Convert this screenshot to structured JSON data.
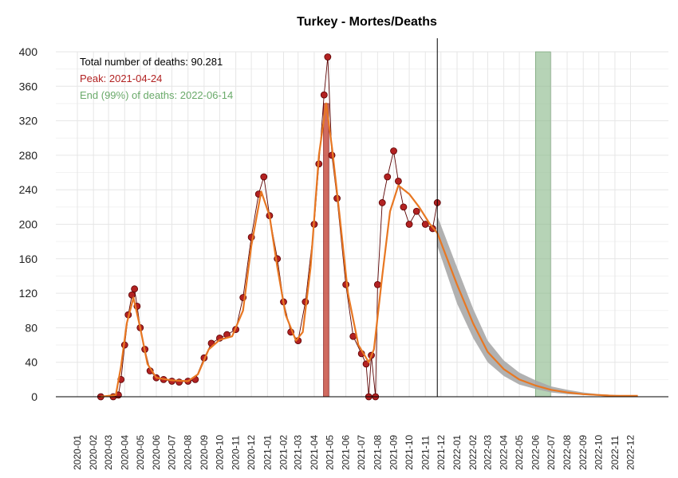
{
  "chart_data": {
    "type": "line",
    "title": "Turkey - Mortes/Deaths",
    "xlabel": "",
    "ylabel": "",
    "xlim": [
      "2020-01-01",
      "2022-12-31"
    ],
    "ylim": [
      0,
      400
    ],
    "yticks": [
      0,
      40,
      80,
      120,
      160,
      200,
      240,
      280,
      320,
      360,
      400
    ],
    "xticks": [
      "2020-01",
      "2020-02",
      "2020-03",
      "2020-04",
      "2020-05",
      "2020-06",
      "2020-07",
      "2020-08",
      "2020-09",
      "2020-10",
      "2020-11",
      "2020-12",
      "2021-01",
      "2021-02",
      "2021-03",
      "2021-04",
      "2021-05",
      "2021-06",
      "2021-07",
      "2021-08",
      "2021-09",
      "2021-10",
      "2021-11",
      "2021-12",
      "2022-01",
      "2022-02",
      "2022-03",
      "2022-04",
      "2022-05",
      "2022-06",
      "2022-07",
      "2022-08",
      "2022-09",
      "2022-10",
      "2022-11",
      "2022-12"
    ],
    "grid": true,
    "annotations": {
      "total": "Total number of deaths: 90.281",
      "peak": "Peak: 2021-04-24",
      "end": "End (99%) of deaths: 2022-06-14"
    },
    "colors": {
      "points_fill": "#b22222",
      "points_stroke": "#5a0000",
      "fit_line": "#e87722",
      "band": "#a9a9a9",
      "peak_bar": "#c0392b",
      "end_bar": "#8fbc8f",
      "annotation_total": "#000000",
      "annotation_peak": "#b22222",
      "annotation_end": "#6aaa6a"
    },
    "today": "2021-11-24",
    "peak_bar": {
      "start": "2021-04-19",
      "end": "2021-04-29",
      "height": 340
    },
    "end_bar": {
      "start": "2022-06-01",
      "end": "2022-06-30",
      "height": 400
    },
    "observed": [
      {
        "x": "2020-02-15",
        "y": 0
      },
      {
        "x": "2020-03-10",
        "y": 0
      },
      {
        "x": "2020-03-20",
        "y": 2
      },
      {
        "x": "2020-03-25",
        "y": 20
      },
      {
        "x": "2020-04-01",
        "y": 60
      },
      {
        "x": "2020-04-08",
        "y": 95
      },
      {
        "x": "2020-04-15",
        "y": 118
      },
      {
        "x": "2020-04-20",
        "y": 125
      },
      {
        "x": "2020-04-25",
        "y": 105
      },
      {
        "x": "2020-05-01",
        "y": 80
      },
      {
        "x": "2020-05-10",
        "y": 55
      },
      {
        "x": "2020-05-20",
        "y": 30
      },
      {
        "x": "2020-06-01",
        "y": 22
      },
      {
        "x": "2020-06-15",
        "y": 20
      },
      {
        "x": "2020-07-01",
        "y": 18
      },
      {
        "x": "2020-07-15",
        "y": 17
      },
      {
        "x": "2020-08-01",
        "y": 18
      },
      {
        "x": "2020-08-15",
        "y": 20
      },
      {
        "x": "2020-09-01",
        "y": 45
      },
      {
        "x": "2020-09-15",
        "y": 62
      },
      {
        "x": "2020-10-01",
        "y": 68
      },
      {
        "x": "2020-10-15",
        "y": 72
      },
      {
        "x": "2020-11-01",
        "y": 78
      },
      {
        "x": "2020-11-15",
        "y": 115
      },
      {
        "x": "2020-12-01",
        "y": 185
      },
      {
        "x": "2020-12-15",
        "y": 235
      },
      {
        "x": "2020-12-25",
        "y": 255
      },
      {
        "x": "2021-01-05",
        "y": 210
      },
      {
        "x": "2021-01-20",
        "y": 160
      },
      {
        "x": "2021-02-01",
        "y": 110
      },
      {
        "x": "2021-02-15",
        "y": 75
      },
      {
        "x": "2021-03-01",
        "y": 65
      },
      {
        "x": "2021-03-15",
        "y": 110
      },
      {
        "x": "2021-04-01",
        "y": 200
      },
      {
        "x": "2021-04-10",
        "y": 270
      },
      {
        "x": "2021-04-20",
        "y": 350
      },
      {
        "x": "2021-04-27",
        "y": 394
      },
      {
        "x": "2021-05-05",
        "y": 280
      },
      {
        "x": "2021-05-15",
        "y": 230
      },
      {
        "x": "2021-06-01",
        "y": 130
      },
      {
        "x": "2021-06-15",
        "y": 70
      },
      {
        "x": "2021-07-01",
        "y": 50
      },
      {
        "x": "2021-07-10",
        "y": 38
      },
      {
        "x": "2021-07-15",
        "y": 0
      },
      {
        "x": "2021-07-20",
        "y": 48
      },
      {
        "x": "2021-07-28",
        "y": 0
      },
      {
        "x": "2021-08-01",
        "y": 130
      },
      {
        "x": "2021-08-10",
        "y": 225
      },
      {
        "x": "2021-08-20",
        "y": 255
      },
      {
        "x": "2021-09-01",
        "y": 285
      },
      {
        "x": "2021-09-10",
        "y": 250
      },
      {
        "x": "2021-09-20",
        "y": 220
      },
      {
        "x": "2021-10-01",
        "y": 200
      },
      {
        "x": "2021-10-15",
        "y": 215
      },
      {
        "x": "2021-11-01",
        "y": 200
      },
      {
        "x": "2021-11-15",
        "y": 195
      },
      {
        "x": "2021-11-24",
        "y": 225
      }
    ],
    "fit": [
      {
        "x": "2020-02-15",
        "y": 0
      },
      {
        "x": "2020-03-15",
        "y": 2
      },
      {
        "x": "2020-03-25",
        "y": 35
      },
      {
        "x": "2020-04-05",
        "y": 85
      },
      {
        "x": "2020-04-18",
        "y": 115
      },
      {
        "x": "2020-05-01",
        "y": 80
      },
      {
        "x": "2020-05-15",
        "y": 38
      },
      {
        "x": "2020-06-01",
        "y": 22
      },
      {
        "x": "2020-07-01",
        "y": 19
      },
      {
        "x": "2020-08-01",
        "y": 18
      },
      {
        "x": "2020-08-20",
        "y": 26
      },
      {
        "x": "2020-09-10",
        "y": 55
      },
      {
        "x": "2020-10-01",
        "y": 66
      },
      {
        "x": "2020-10-25",
        "y": 70
      },
      {
        "x": "2020-11-15",
        "y": 100
      },
      {
        "x": "2020-12-01",
        "y": 175
      },
      {
        "x": "2020-12-20",
        "y": 238
      },
      {
        "x": "2021-01-05",
        "y": 210
      },
      {
        "x": "2021-01-20",
        "y": 150
      },
      {
        "x": "2021-02-05",
        "y": 95
      },
      {
        "x": "2021-02-25",
        "y": 65
      },
      {
        "x": "2021-03-10",
        "y": 75
      },
      {
        "x": "2021-03-25",
        "y": 150
      },
      {
        "x": "2021-04-10",
        "y": 280
      },
      {
        "x": "2021-04-24",
        "y": 340
      },
      {
        "x": "2021-05-05",
        "y": 290
      },
      {
        "x": "2021-05-20",
        "y": 210
      },
      {
        "x": "2021-06-05",
        "y": 120
      },
      {
        "x": "2021-06-25",
        "y": 60
      },
      {
        "x": "2021-07-15",
        "y": 40
      },
      {
        "x": "2021-07-25",
        "y": 55
      },
      {
        "x": "2021-08-10",
        "y": 140
      },
      {
        "x": "2021-08-25",
        "y": 215
      },
      {
        "x": "2021-09-10",
        "y": 245
      },
      {
        "x": "2021-10-01",
        "y": 235
      },
      {
        "x": "2021-10-20",
        "y": 220
      },
      {
        "x": "2021-11-10",
        "y": 200
      },
      {
        "x": "2021-11-24",
        "y": 190
      },
      {
        "x": "2022-01-01",
        "y": 130
      },
      {
        "x": "2022-02-01",
        "y": 85
      },
      {
        "x": "2022-03-01",
        "y": 52
      },
      {
        "x": "2022-04-01",
        "y": 32
      },
      {
        "x": "2022-05-01",
        "y": 20
      },
      {
        "x": "2022-06-01",
        "y": 13
      },
      {
        "x": "2022-07-01",
        "y": 8
      },
      {
        "x": "2022-08-01",
        "y": 5
      },
      {
        "x": "2022-09-01",
        "y": 3
      },
      {
        "x": "2022-10-01",
        "y": 2
      },
      {
        "x": "2022-11-01",
        "y": 1
      },
      {
        "x": "2022-12-15",
        "y": 1
      }
    ],
    "band": [
      {
        "x": "2021-11-24",
        "lo": 175,
        "hi": 210
      },
      {
        "x": "2022-01-01",
        "lo": 108,
        "hi": 150
      },
      {
        "x": "2022-02-01",
        "lo": 68,
        "hi": 102
      },
      {
        "x": "2022-03-01",
        "lo": 40,
        "hi": 65
      },
      {
        "x": "2022-04-01",
        "lo": 24,
        "hi": 42
      },
      {
        "x": "2022-05-01",
        "lo": 14,
        "hi": 28
      },
      {
        "x": "2022-06-01",
        "lo": 9,
        "hi": 19
      },
      {
        "x": "2022-07-01",
        "lo": 5,
        "hi": 12
      },
      {
        "x": "2022-08-01",
        "lo": 3,
        "hi": 8
      },
      {
        "x": "2022-09-01",
        "lo": 2,
        "hi": 5
      },
      {
        "x": "2022-10-01",
        "lo": 1,
        "hi": 3
      },
      {
        "x": "2022-11-01",
        "lo": 0,
        "hi": 2
      },
      {
        "x": "2022-12-15",
        "lo": 0,
        "hi": 1
      }
    ]
  }
}
